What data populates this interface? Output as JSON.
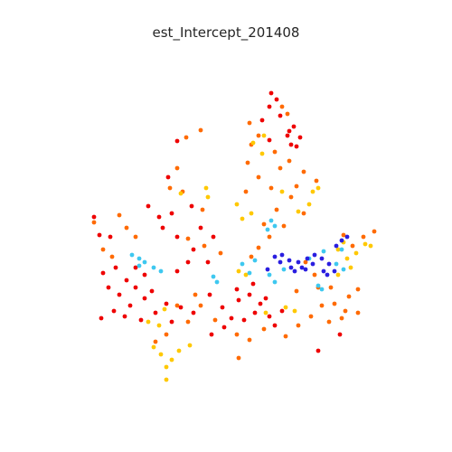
{
  "chart_data": {
    "type": "scatter",
    "title": "est_Intercept_201408",
    "xlabel": "",
    "ylabel": "",
    "axes_visible": false,
    "grid": false,
    "legend": "none",
    "colormap": "jet",
    "color_classes": {
      "blue": "#2a1ee0",
      "cyan": "#3ec8f0",
      "yellow": "#ffc800",
      "orange": "#ff6a00",
      "red": "#ee0000"
    },
    "series": [
      {
        "color_class": "red",
        "points": [
          [
            300,
            103
          ],
          [
            306,
            110
          ],
          [
            298,
            118
          ],
          [
            310,
            128
          ],
          [
            290,
            133
          ],
          [
            325,
            140
          ],
          [
            318,
            150
          ],
          [
            332,
            152
          ],
          [
            322,
            160
          ],
          [
            298,
            155
          ],
          [
            320,
            145
          ],
          [
            328,
            162
          ],
          [
            196,
            156
          ],
          [
            186,
            196
          ],
          [
            164,
            228
          ],
          [
            176,
            240
          ],
          [
            190,
            236
          ],
          [
            212,
            228
          ],
          [
            180,
            252
          ],
          [
            196,
            262
          ],
          [
            222,
            252
          ],
          [
            236,
            262
          ],
          [
            214,
            276
          ],
          [
            230,
            290
          ],
          [
            208,
            290
          ],
          [
            114,
            302
          ],
          [
            128,
            296
          ],
          [
            140,
            310
          ],
          [
            120,
            318
          ],
          [
            132,
            326
          ],
          [
            150,
            318
          ],
          [
            160,
            330
          ],
          [
            144,
            338
          ],
          [
            126,
            344
          ],
          [
            112,
            352
          ],
          [
            138,
            350
          ],
          [
            156,
            354
          ],
          [
            172,
            346
          ],
          [
            184,
            336
          ],
          [
            190,
            356
          ],
          [
            168,
            322
          ],
          [
            200,
            340
          ],
          [
            214,
            346
          ],
          [
            232,
            326
          ],
          [
            246,
            340
          ],
          [
            256,
            352
          ],
          [
            264,
            332
          ],
          [
            276,
            326
          ],
          [
            288,
            336
          ],
          [
            298,
            350
          ],
          [
            312,
            344
          ],
          [
            304,
            360
          ],
          [
            270,
            354
          ],
          [
            248,
            362
          ],
          [
            234,
            370
          ],
          [
            262,
            320
          ],
          [
            280,
            314
          ],
          [
            282,
            346
          ],
          [
            294,
            330
          ],
          [
            196,
            300
          ],
          [
            160,
            304
          ],
          [
            150,
            296
          ],
          [
            110,
            260
          ],
          [
            122,
            262
          ],
          [
            104,
            240
          ],
          [
            352,
            388
          ],
          [
            376,
            370
          ]
        ]
      },
      {
        "color_class": "orange",
        "points": [
          [
            312,
            118
          ],
          [
            318,
            126
          ],
          [
            286,
            150
          ],
          [
            304,
            168
          ],
          [
            320,
            178
          ],
          [
            336,
            190
          ],
          [
            350,
            200
          ],
          [
            328,
            206
          ],
          [
            274,
            180
          ],
          [
            286,
            196
          ],
          [
            272,
            212
          ],
          [
            300,
            208
          ],
          [
            322,
            218
          ],
          [
            306,
            232
          ],
          [
            292,
            248
          ],
          [
            314,
            250
          ],
          [
            298,
            262
          ],
          [
            286,
            274
          ],
          [
            278,
            284
          ],
          [
            196,
            186
          ],
          [
            188,
            208
          ],
          [
            202,
            212
          ],
          [
            224,
            232
          ],
          [
            208,
            264
          ],
          [
            226,
            272
          ],
          [
            244,
            280
          ],
          [
            132,
            238
          ],
          [
            140,
            252
          ],
          [
            150,
            262
          ],
          [
            114,
            276
          ],
          [
            124,
            284
          ],
          [
            104,
            246
          ],
          [
            216,
            326
          ],
          [
            222,
            338
          ],
          [
            208,
            356
          ],
          [
            238,
            354
          ],
          [
            262,
            370
          ],
          [
            276,
            376
          ],
          [
            292,
            364
          ],
          [
            316,
            372
          ],
          [
            330,
            360
          ],
          [
            344,
            350
          ],
          [
            356,
            338
          ],
          [
            370,
            336
          ],
          [
            382,
            344
          ],
          [
            396,
            346
          ],
          [
            378,
            352
          ],
          [
            364,
            356
          ],
          [
            386,
            328
          ],
          [
            366,
            318
          ],
          [
            352,
            318
          ],
          [
            396,
            320
          ],
          [
            390,
            272
          ],
          [
            402,
            262
          ],
          [
            380,
            260
          ],
          [
            414,
            256
          ],
          [
            184,
            370
          ],
          [
            172,
            378
          ],
          [
            264,
            396
          ],
          [
            196,
            338
          ],
          [
            338,
            290
          ],
          [
            348,
            304
          ],
          [
            328,
            322
          ],
          [
            276,
            136
          ],
          [
            278,
            160
          ],
          [
            310,
            186
          ],
          [
            336,
            236
          ],
          [
            206,
            152
          ],
          [
            222,
            144
          ]
        ]
      },
      {
        "color_class": "yellow",
        "points": [
          [
            292,
            150
          ],
          [
            280,
            158
          ],
          [
            346,
            212
          ],
          [
            352,
            208
          ],
          [
            342,
            226
          ],
          [
            330,
            234
          ],
          [
            262,
            226
          ],
          [
            268,
            242
          ],
          [
            278,
            236
          ],
          [
            200,
            214
          ],
          [
            228,
            208
          ],
          [
            230,
            218
          ],
          [
            170,
            384
          ],
          [
            178,
            392
          ],
          [
            190,
            398
          ],
          [
            198,
            388
          ],
          [
            210,
            382
          ],
          [
            184,
            406
          ],
          [
            176,
            360
          ],
          [
            182,
            342
          ],
          [
            164,
            356
          ],
          [
            384,
            286
          ],
          [
            394,
            280
          ],
          [
            404,
            270
          ],
          [
            388,
            296
          ],
          [
            374,
            304
          ],
          [
            380,
            268
          ],
          [
            410,
            272
          ],
          [
            374,
            276
          ],
          [
            294,
            346
          ],
          [
            316,
            340
          ],
          [
            326,
            344
          ],
          [
            264,
            300
          ],
          [
            272,
            304
          ],
          [
            184,
            420
          ],
          [
            290,
            170
          ],
          [
            312,
            212
          ]
        ]
      },
      {
        "color_class": "cyan",
        "points": [
          [
            154,
            286
          ],
          [
            160,
            290
          ],
          [
            146,
            282
          ],
          [
            170,
            296
          ],
          [
            178,
            300
          ],
          [
            236,
            306
          ],
          [
            240,
            312
          ],
          [
            268,
            292
          ],
          [
            276,
            302
          ],
          [
            282,
            288
          ],
          [
            298,
            304
          ],
          [
            304,
            312
          ],
          [
            314,
            298
          ],
          [
            352,
            316
          ],
          [
            356,
            320
          ],
          [
            342,
            286
          ],
          [
            296,
            254
          ],
          [
            304,
            250
          ],
          [
            372,
            292
          ],
          [
            380,
            298
          ],
          [
            378,
            276
          ],
          [
            300,
            244
          ],
          [
            358,
            278
          ],
          [
            154,
            294
          ]
        ]
      },
      {
        "color_class": "blue",
        "points": [
          [
            304,
            284
          ],
          [
            312,
            282
          ],
          [
            320,
            288
          ],
          [
            330,
            290
          ],
          [
            334,
            296
          ],
          [
            322,
            296
          ],
          [
            310,
            290
          ],
          [
            340,
            286
          ],
          [
            348,
            282
          ],
          [
            356,
            286
          ],
          [
            346,
            292
          ],
          [
            358,
            300
          ],
          [
            362,
            304
          ],
          [
            370,
            300
          ],
          [
            364,
            292
          ],
          [
            372,
            272
          ],
          [
            378,
            266
          ],
          [
            384,
            262
          ],
          [
            296,
            298
          ],
          [
            326,
            300
          ],
          [
            338,
            298
          ]
        ]
      }
    ]
  }
}
